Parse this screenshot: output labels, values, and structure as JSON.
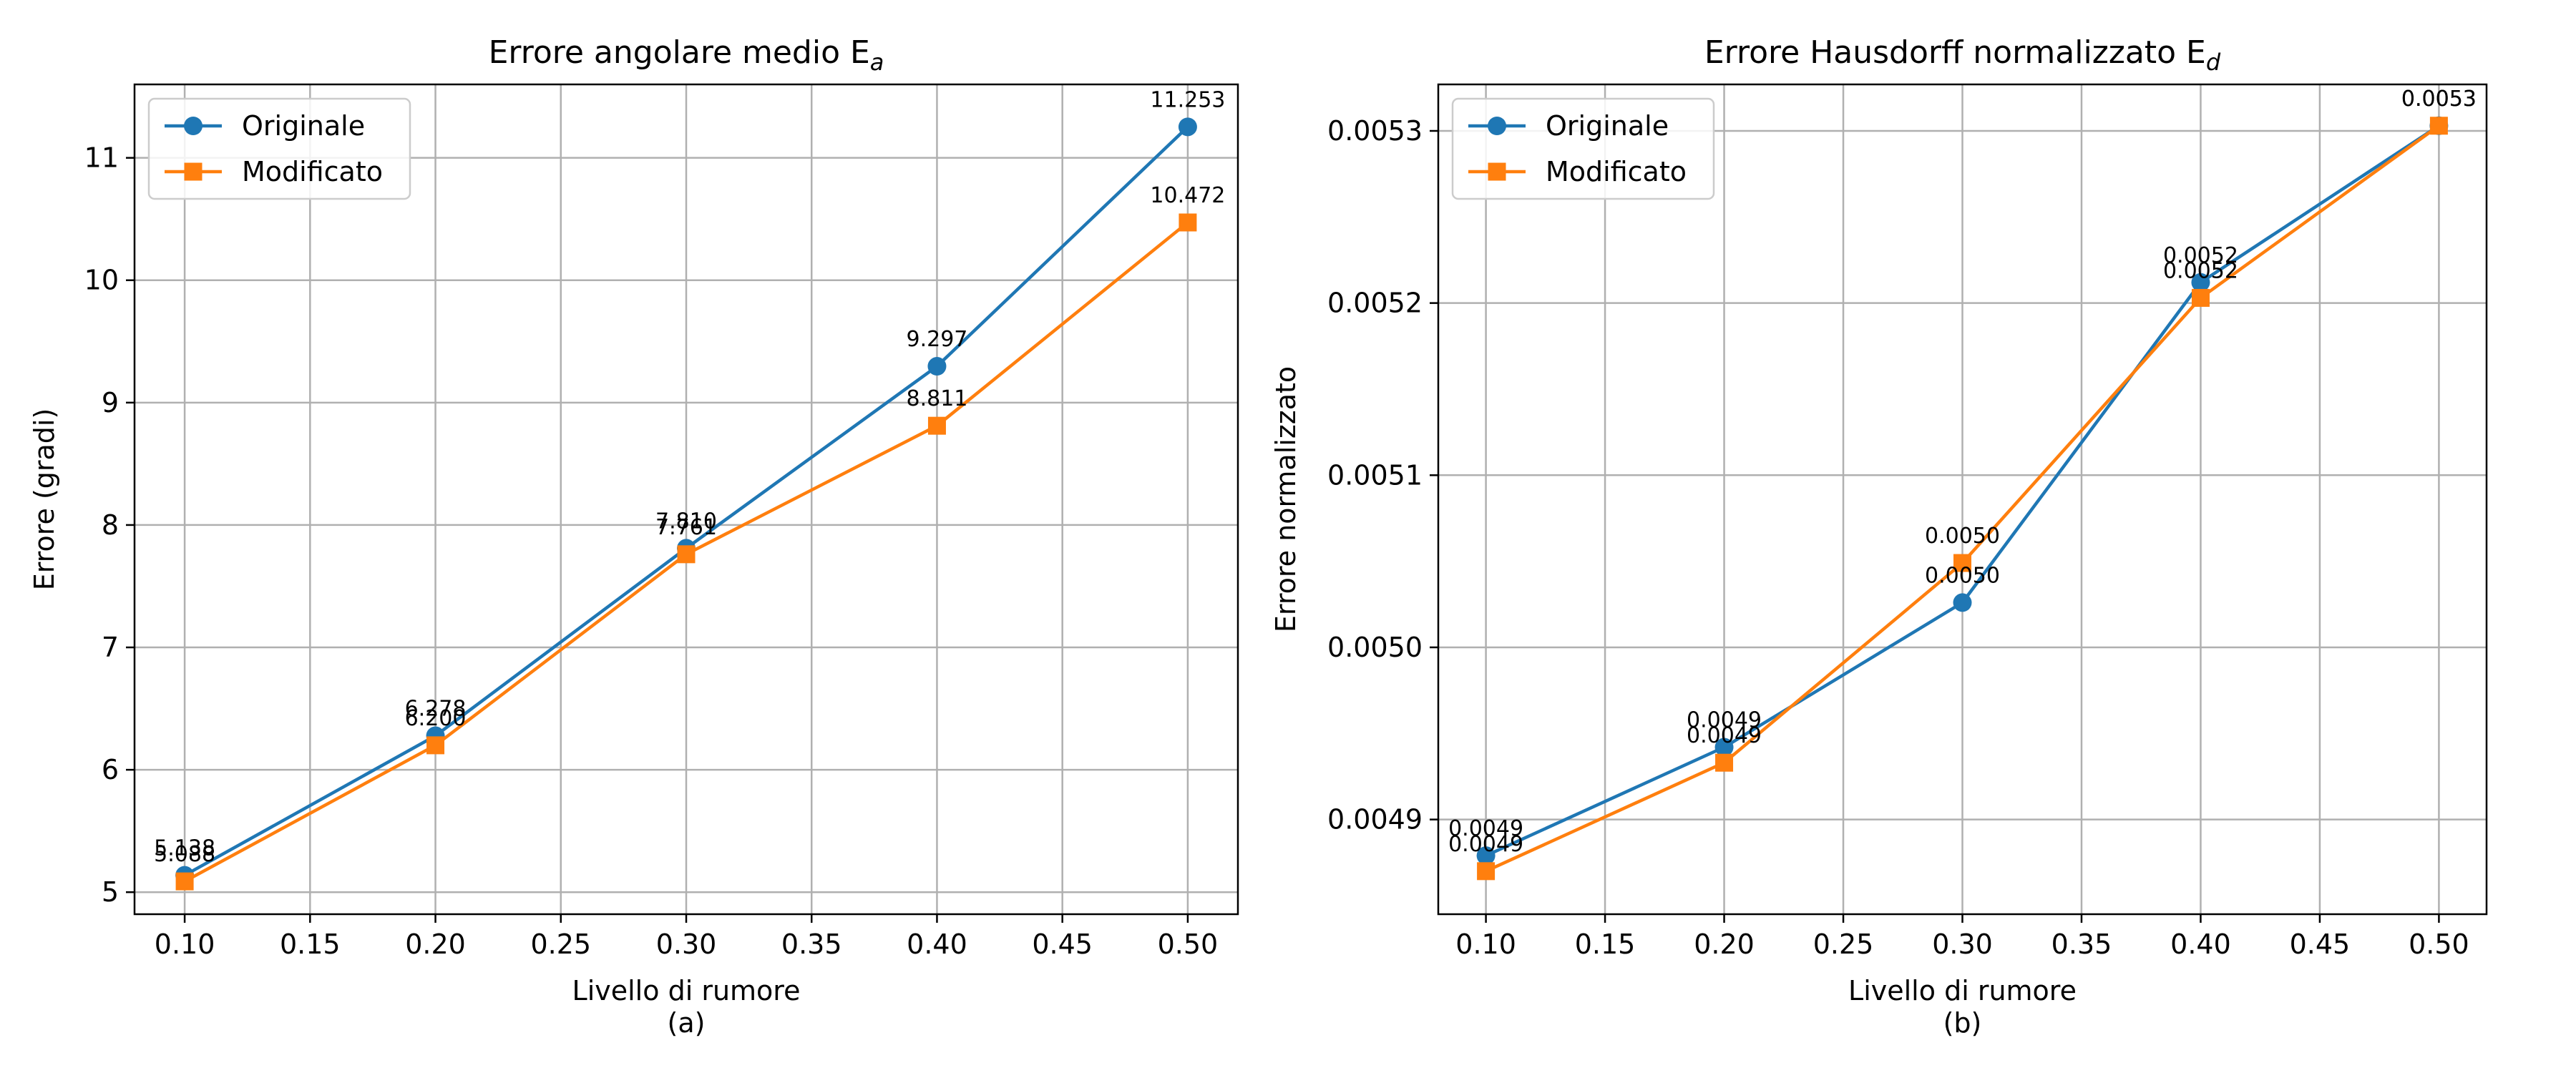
{
  "colors": {
    "originale": "#1f77b4",
    "modificato": "#ff7f0e"
  },
  "chart_data": [
    {
      "type": "line",
      "title": "Errore angolare medio E",
      "title_sub": "a",
      "xlabel": "Livello di rumore",
      "ylabel": "Errore (gradi)",
      "caption": "(a)",
      "x": [
        0.1,
        0.2,
        0.3,
        0.4,
        0.5
      ],
      "xlim": [
        0.08,
        0.52
      ],
      "ylim": [
        4.82,
        11.6
      ],
      "xticks": [
        0.1,
        0.15,
        0.2,
        0.25,
        0.3,
        0.35,
        0.4,
        0.45,
        0.5
      ],
      "xtick_labels": [
        "0.10",
        "0.15",
        "0.20",
        "0.25",
        "0.30",
        "0.35",
        "0.40",
        "0.45",
        "0.50"
      ],
      "yticks": [
        5,
        6,
        7,
        8,
        9,
        10,
        11
      ],
      "ytick_labels": [
        "5",
        "6",
        "7",
        "8",
        "9",
        "10",
        "11"
      ],
      "grid": true,
      "legend": "upper-left",
      "series": [
        {
          "name": "Originale",
          "marker": "circle",
          "values": [
            5.138,
            6.278,
            7.81,
            9.297,
            11.253
          ],
          "labels": [
            "5.138",
            "6.278",
            "7.810",
            "9.297",
            "11.253"
          ]
        },
        {
          "name": "Modificato",
          "marker": "square",
          "values": [
            5.088,
            6.2,
            7.761,
            8.811,
            10.472
          ],
          "labels": [
            "5.088",
            "6.200",
            "7.761",
            "8.811",
            "10.472"
          ]
        }
      ]
    },
    {
      "type": "line",
      "title": "Errore Hausdorff normalizzato E",
      "title_sub": "d",
      "xlabel": "Livello di rumore",
      "ylabel": "Errore normalizzato",
      "caption": "(b)",
      "x": [
        0.1,
        0.2,
        0.3,
        0.4,
        0.5
      ],
      "xlim": [
        0.08,
        0.52
      ],
      "ylim": [
        0.004845,
        0.005327
      ],
      "xticks": [
        0.1,
        0.15,
        0.2,
        0.25,
        0.3,
        0.35,
        0.4,
        0.45,
        0.5
      ],
      "xtick_labels": [
        "0.10",
        "0.15",
        "0.20",
        "0.25",
        "0.30",
        "0.35",
        "0.40",
        "0.45",
        "0.50"
      ],
      "yticks": [
        0.0049,
        0.005,
        0.0051,
        0.0052,
        0.0053
      ],
      "ytick_labels": [
        "0.0049",
        "0.0050",
        "0.0051",
        "0.0052",
        "0.0053"
      ],
      "grid": true,
      "legend": "upper-left",
      "series": [
        {
          "name": "Originale",
          "marker": "circle",
          "values": [
            0.004879,
            0.004942,
            0.005026,
            0.005212,
            0.005303
          ],
          "labels": [
            "0.0049",
            "0.0049",
            "0.0050",
            "0.0052",
            "0.0053"
          ]
        },
        {
          "name": "Modificato",
          "marker": "square",
          "values": [
            0.00487,
            0.004933,
            0.005049,
            0.005203,
            0.005303
          ],
          "labels": [
            "0.0049",
            "0.0049",
            "0.0050",
            "0.0052",
            "0.0053"
          ]
        }
      ]
    }
  ]
}
